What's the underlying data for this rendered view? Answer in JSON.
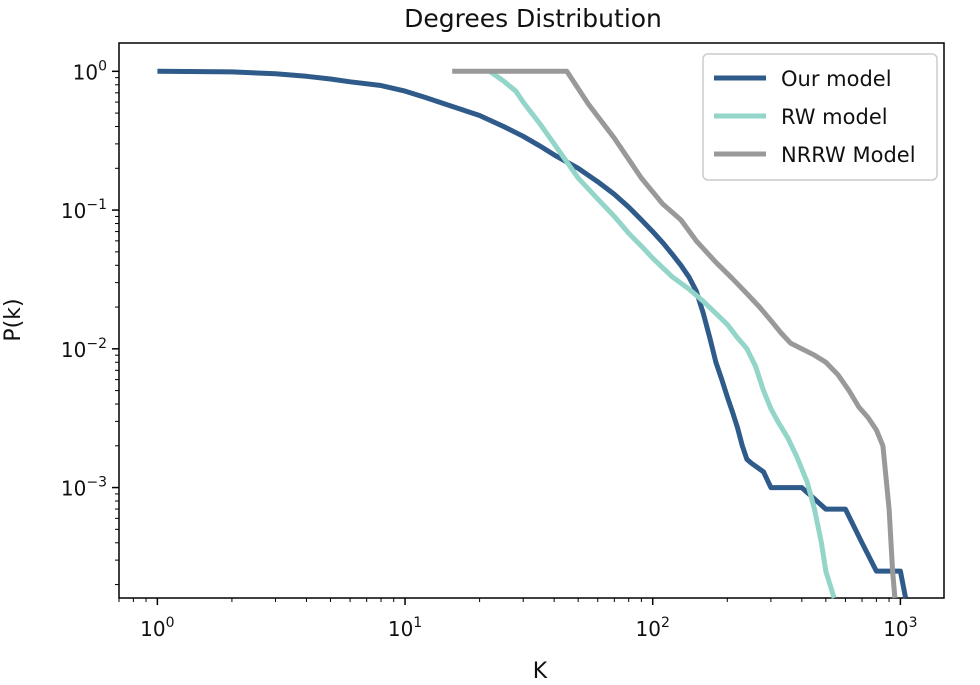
{
  "chart_data": {
    "type": "line",
    "title": "Degrees Distribution",
    "xlabel": "K",
    "ylabel": "P(k)",
    "xscale": "log",
    "yscale": "log",
    "xlim": [
      0.7,
      1500
    ],
    "ylim": [
      0.00016,
      1.6
    ],
    "xticks": [
      {
        "value": 1,
        "base": "10",
        "exp": "0"
      },
      {
        "value": 10,
        "base": "10",
        "exp": "1"
      },
      {
        "value": 100,
        "base": "10",
        "exp": "2"
      },
      {
        "value": 1000,
        "base": "10",
        "exp": "3"
      }
    ],
    "yticks": [
      {
        "value": 1,
        "base": "10",
        "exp": "0"
      },
      {
        "value": 0.1,
        "base": "10",
        "exp": "−1"
      },
      {
        "value": 0.01,
        "base": "10",
        "exp": "−2"
      },
      {
        "value": 0.001,
        "base": "10",
        "exp": "−3"
      }
    ],
    "legend_position": "top-right",
    "series": [
      {
        "name": "Our model",
        "color": "#2f5b8a",
        "x": [
          1,
          2,
          3,
          4,
          5,
          6,
          8,
          10,
          12,
          15,
          20,
          25,
          30,
          35,
          40,
          50,
          60,
          70,
          80,
          90,
          100,
          110,
          120,
          130,
          140,
          150,
          160,
          170,
          180,
          190,
          200,
          210,
          220,
          230,
          240,
          250,
          280,
          300,
          330,
          400,
          500,
          600,
          700,
          800,
          1000,
          1050
        ],
        "y": [
          1,
          0.99,
          0.96,
          0.92,
          0.88,
          0.84,
          0.79,
          0.72,
          0.65,
          0.57,
          0.48,
          0.4,
          0.34,
          0.29,
          0.25,
          0.2,
          0.16,
          0.13,
          0.105,
          0.085,
          0.07,
          0.058,
          0.048,
          0.04,
          0.033,
          0.026,
          0.018,
          0.012,
          0.008,
          0.006,
          0.0045,
          0.0035,
          0.0027,
          0.002,
          0.0016,
          0.0015,
          0.0013,
          0.001,
          0.001,
          0.001,
          0.0007,
          0.0007,
          0.0004,
          0.00025,
          0.00025,
          0.00016
        ]
      },
      {
        "name": "RW model",
        "color": "#93d5c8",
        "x": [
          22,
          25,
          28,
          30,
          35,
          40,
          50,
          60,
          70,
          80,
          90,
          100,
          120,
          140,
          160,
          180,
          200,
          220,
          240,
          260,
          280,
          300,
          320,
          350,
          380,
          420,
          450,
          480,
          500,
          520,
          540
        ],
        "y": [
          1,
          0.85,
          0.72,
          0.6,
          0.42,
          0.3,
          0.17,
          0.12,
          0.09,
          0.068,
          0.055,
          0.045,
          0.033,
          0.027,
          0.022,
          0.018,
          0.015,
          0.012,
          0.01,
          0.0075,
          0.005,
          0.0037,
          0.003,
          0.0023,
          0.0017,
          0.0011,
          0.0007,
          0.0004,
          0.00025,
          0.0002,
          0.00016
        ]
      },
      {
        "name": "NRRW Model",
        "color": "#999999",
        "x": [
          15.5,
          30,
          45,
          55,
          70,
          90,
          110,
          130,
          150,
          180,
          210,
          240,
          270,
          300,
          330,
          360,
          400,
          450,
          500,
          560,
          620,
          680,
          740,
          800,
          850,
          900,
          930,
          950
        ],
        "y": [
          1,
          1,
          1,
          0.58,
          0.33,
          0.17,
          0.11,
          0.085,
          0.06,
          0.042,
          0.032,
          0.025,
          0.02,
          0.016,
          0.013,
          0.011,
          0.01,
          0.009,
          0.008,
          0.0065,
          0.005,
          0.0038,
          0.0032,
          0.0026,
          0.002,
          0.0007,
          0.00025,
          0.00016
        ]
      }
    ]
  }
}
